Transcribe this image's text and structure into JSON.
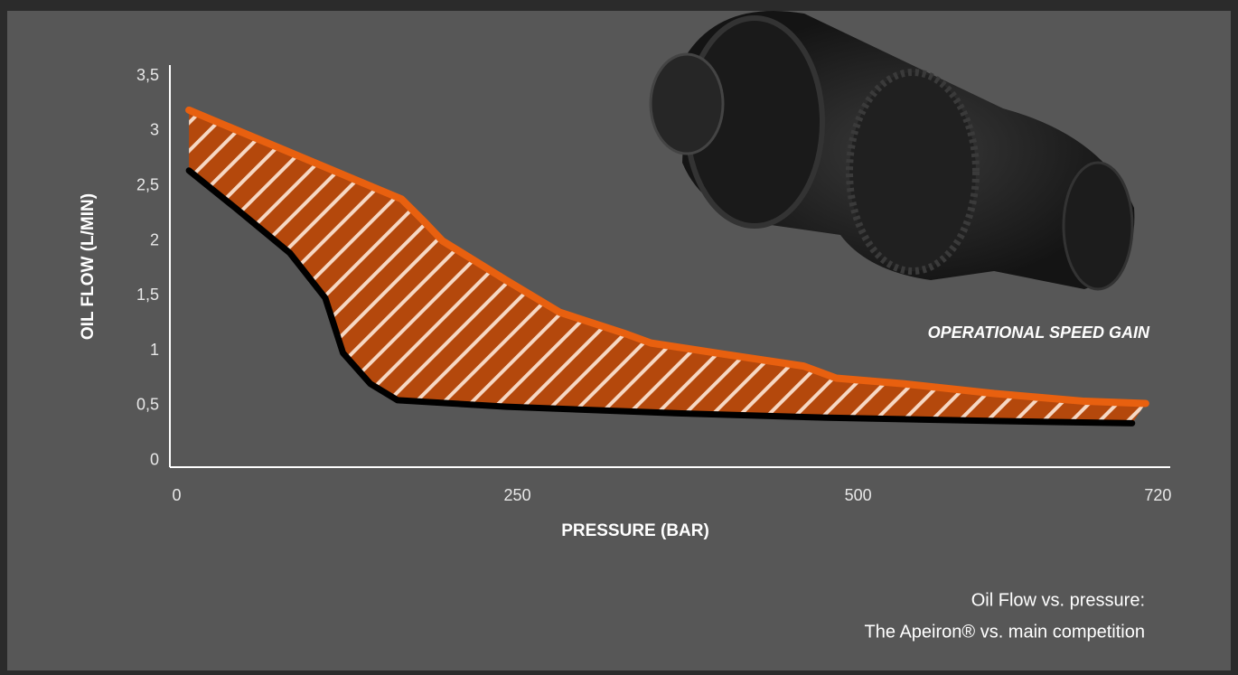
{
  "chart_data": {
    "type": "line",
    "annotation": "OPERATIONAL SPEED GAIN",
    "x_label": "PRESSURE (BAR)",
    "y_label": "OIL FLOW (L/MIN)",
    "caption": [
      "Oil Flow vs. pressure:",
      "The Apeiron® vs. main competition"
    ],
    "xlim": [
      -5,
      729
    ],
    "xticks": [
      0,
      250,
      500,
      720
    ],
    "ylim": [
      -0.06,
      3.6
    ],
    "yticks": [
      0,
      {
        "value": 0.5,
        "label": "0,5"
      },
      1,
      {
        "value": 1.5,
        "label": "1,5"
      },
      2,
      {
        "value": 2.5,
        "label": "2,5"
      },
      3,
      {
        "value": 3.5,
        "label": "3,5"
      }
    ],
    "grid": false,
    "fill_between": true,
    "series": [
      {
        "color": "#e8600f",
        "x": [
          9,
          165,
          182,
          195,
          242,
          281,
          328,
          348,
          401,
          460,
          484,
          533,
          600,
          666,
          711
        ],
        "values": [
          3.19,
          2.38,
          2.17,
          2.0,
          1.64,
          1.35,
          1.16,
          1.07,
          0.97,
          0.86,
          0.75,
          0.7,
          0.61,
          0.54,
          0.52
        ]
      },
      {
        "color": "#000000",
        "x": [
          9,
          43,
          83,
          109,
          122,
          142,
          162,
          242,
          368,
          478,
          600,
          701
        ],
        "values": [
          2.64,
          2.3,
          1.89,
          1.48,
          0.98,
          0.7,
          0.55,
          0.49,
          0.43,
          0.39,
          0.36,
          0.34
        ]
      }
    ]
  }
}
